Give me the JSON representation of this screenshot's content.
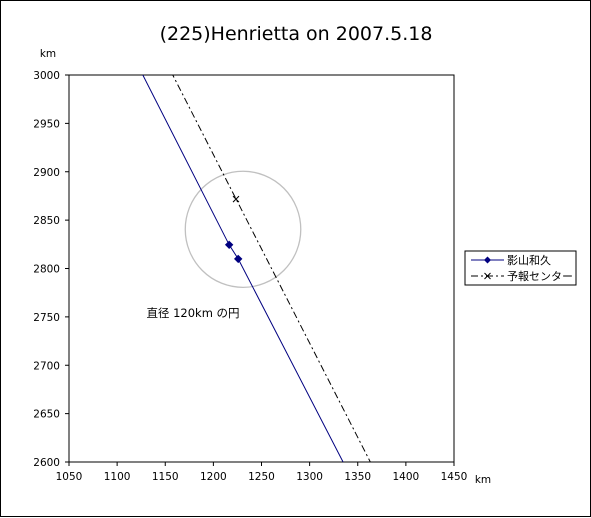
{
  "chart_data": {
    "type": "line",
    "title": "(225)Henrietta on 2007.5.18",
    "xlabel": "km",
    "ylabel": "km",
    "xlim": [
      1050,
      1450
    ],
    "ylim": [
      2600,
      3000
    ],
    "xticks": [
      1050,
      1100,
      1150,
      1200,
      1250,
      1300,
      1350,
      1400,
      1450
    ],
    "yticks": [
      2600,
      2650,
      2700,
      2750,
      2800,
      2850,
      2900,
      2950,
      3000
    ],
    "grid": false,
    "legend_position": "right",
    "series": [
      {
        "name": "影山和久",
        "color": "#000080",
        "line_style": "solid",
        "marker": "diamond",
        "x": [
          1124.7,
          1216.4,
          1225.8,
          1335.9
        ],
        "y": [
          3003.9,
          2824.5,
          2809.9,
          2597.8
        ],
        "marker_points": [
          [
            1216.4,
            2824.5
          ],
          [
            1225.8,
            2809.9
          ]
        ]
      },
      {
        "name": "予報センター",
        "color": "#000000",
        "line_style": "dashdot",
        "marker": "x",
        "x": [
          1155.8,
          1364.2
        ],
        "y": [
          3003.9,
          2597.8
        ],
        "marker_points": [
          [
            1223.5,
            2871.7
          ]
        ]
      }
    ],
    "circle": {
      "center": [
        1230.8,
        2840.5
      ],
      "radius": 60,
      "color": "#c0c0c0"
    },
    "annotations": [
      {
        "text": "直径 120km の円",
        "x": 1145,
        "y": 2755
      }
    ]
  }
}
